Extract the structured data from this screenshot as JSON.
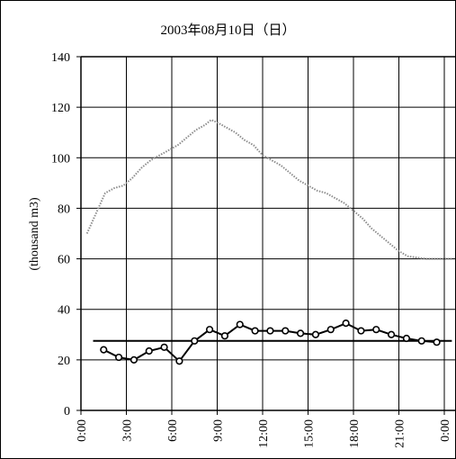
{
  "chart_data": {
    "type": "line",
    "title": "2003年08月10日（日）",
    "ylabel": "(thousand m3)",
    "xlabel": "",
    "ylim": [
      0,
      140
    ],
    "yticks": [
      0,
      20,
      40,
      60,
      80,
      100,
      120,
      140
    ],
    "xlim": [
      0,
      24.5
    ],
    "xtick_labels": [
      "0:00",
      "3:00",
      "6:00",
      "9:00",
      "12:00",
      "15:00",
      "18:00",
      "21:00",
      "0:00"
    ],
    "xtick_values": [
      0,
      3,
      6,
      9,
      12,
      15,
      18,
      21,
      24
    ],
    "grid": true,
    "legend": "none",
    "series": [
      {
        "style": "dotted-gray",
        "color": "#8c8c8c",
        "x": [
          0.4,
          1.0,
          1.6,
          2.2,
          2.8,
          3.4,
          4.0,
          4.6,
          5.2,
          5.8,
          6.4,
          7.0,
          7.6,
          8.2,
          8.6,
          9.0,
          9.6,
          10.2,
          10.8,
          11.4,
          12.0,
          12.6,
          13.2,
          13.8,
          14.4,
          15.0,
          15.6,
          16.2,
          16.8,
          17.4,
          18.0,
          18.6,
          19.2,
          19.8,
          20.4,
          21.0,
          21.6,
          22.2,
          22.8,
          23.4,
          24.0,
          24.5
        ],
        "y": [
          70,
          78,
          86,
          88,
          89,
          92,
          96,
          99,
          101,
          103,
          105,
          108,
          111,
          113,
          115,
          114,
          112,
          110,
          107,
          105,
          101,
          99,
          97,
          94,
          91,
          89,
          87,
          86,
          84,
          82,
          79,
          76,
          72,
          69,
          66,
          63,
          61,
          60.5,
          60,
          60,
          60,
          60
        ]
      },
      {
        "style": "flat-black",
        "color": "#000000",
        "x": [
          0.8,
          24.5
        ],
        "y": [
          27.5,
          27.5
        ]
      },
      {
        "style": "black-circle-markers",
        "color": "#000000",
        "x": [
          1.5,
          2.5,
          3.5,
          4.5,
          5.5,
          6.5,
          7.5,
          8.5,
          9.5,
          10.5,
          11.5,
          12.5,
          13.5,
          14.5,
          15.5,
          16.5,
          17.5,
          18.5,
          19.5,
          20.5,
          21.5,
          22.5,
          23.5
        ],
        "y": [
          24,
          21,
          20,
          23.5,
          25,
          19.5,
          27.5,
          32,
          29.5,
          34,
          31.5,
          31.5,
          31.5,
          30.5,
          30,
          32,
          34.5,
          31.5,
          32,
          30,
          28.5,
          27.5,
          27
        ]
      }
    ]
  }
}
